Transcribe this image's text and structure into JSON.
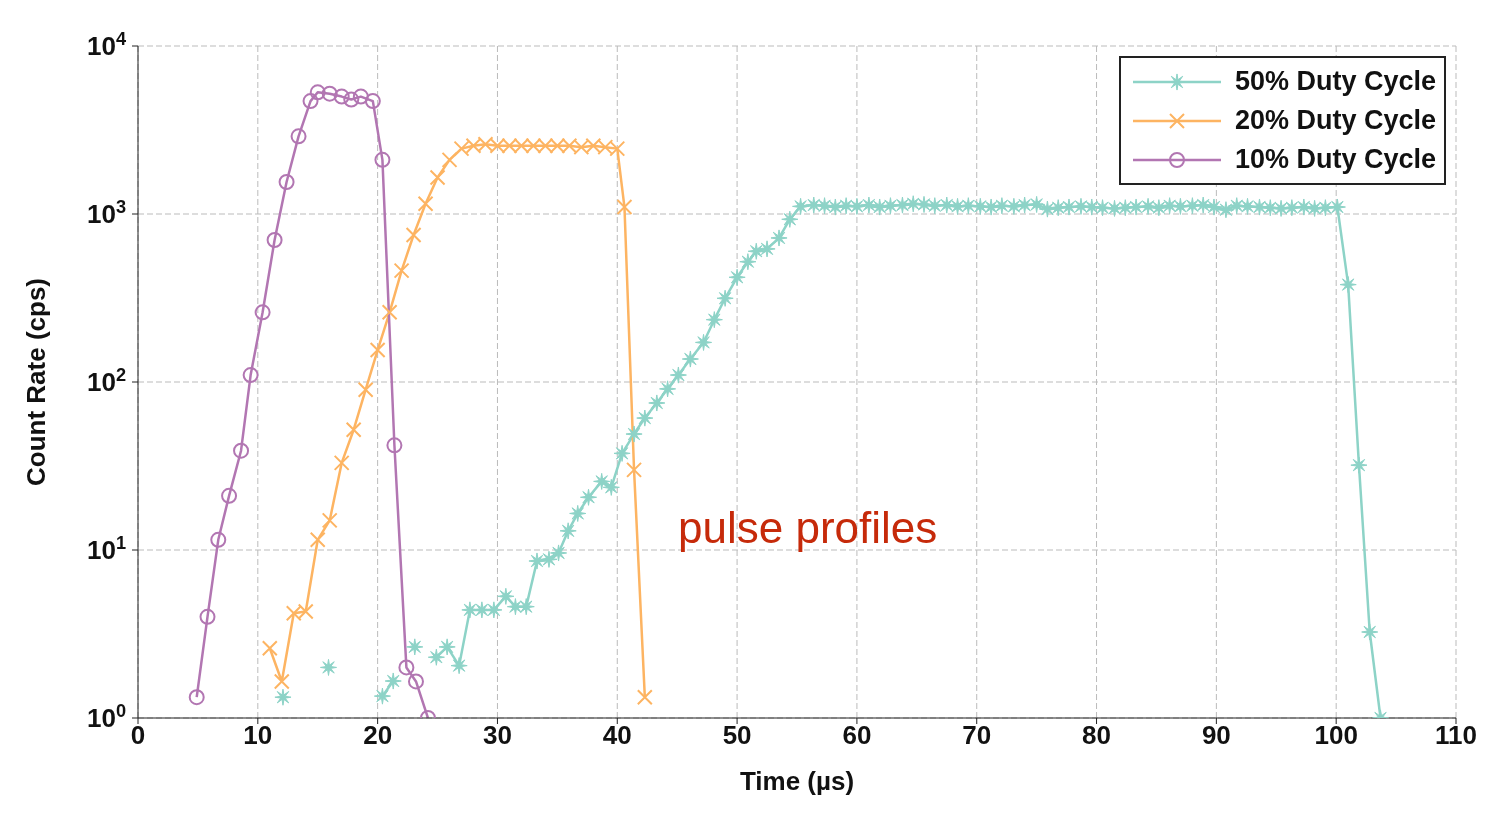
{
  "chart_data": {
    "type": "line",
    "xlabel": "Time (µs)",
    "ylabel": "Count Rate (cps)",
    "annotations": [
      "pulse profiles"
    ],
    "xlim": [
      0,
      110
    ],
    "xticks": [
      0,
      10,
      20,
      30,
      40,
      50,
      60,
      70,
      80,
      90,
      100,
      110
    ],
    "ylim": [
      1,
      10000
    ],
    "yticks": [
      {
        "value": 1,
        "label": "10$^{0}$"
      },
      {
        "value": 10,
        "label": "10$^{1}$"
      },
      {
        "value": 100,
        "label": "10$^{2}$"
      },
      {
        "value": 1000,
        "label": "10$^{3}$"
      },
      {
        "value": 10000,
        "label": "10$^{4}$"
      }
    ],
    "log": true,
    "grid": true,
    "legend": "top right",
    "line_style": "solid",
    "series": [
      {
        "name": "50% Duty Cycle",
        "color": "#8dd3c7",
        "marker": "star",
        "x": [
          12.1,
          13.1,
          14.0,
          15.0,
          15.9,
          16.9,
          17.9,
          18.9,
          19.6,
          20.4,
          21.3,
          22.2,
          23.1,
          24.0,
          24.9,
          25.8,
          26.8,
          27.7,
          28.7,
          29.7,
          30.7,
          31.5,
          32.4,
          33.3,
          34.3,
          35.1,
          35.9,
          36.7,
          37.6,
          38.7,
          39.5,
          40.4,
          41.4,
          42.3,
          43.3,
          44.2,
          45.1,
          46.1,
          47.2,
          48.1,
          49.0,
          50.0,
          50.9,
          51.6,
          52.5,
          53.5,
          54.4,
          55.3,
          56.4,
          57.3,
          58.2,
          59.1,
          60.0,
          61.0,
          61.9,
          62.8,
          63.8,
          64.7,
          65.6,
          66.5,
          67.5,
          68.4,
          69.3,
          70.3,
          71.2,
          72.1,
          73.1,
          74.0,
          75.0,
          75.9,
          76.8,
          77.7,
          78.7,
          79.6,
          80.5,
          81.5,
          82.4,
          83.3,
          84.3,
          85.2,
          86.1,
          87.0,
          88.0,
          88.9,
          89.8,
          90.8,
          91.7,
          92.6,
          93.6,
          94.5,
          95.4,
          96.3,
          97.3,
          98.2,
          99.1,
          100.1,
          101.0,
          101.9,
          102.8,
          103.7
        ],
        "values": [
          1.33,
          null,
          null,
          null,
          2.0,
          null,
          null,
          null,
          null,
          1.35,
          1.66,
          null,
          2.65,
          null,
          2.3,
          2.65,
          2.05,
          4.4,
          4.4,
          4.4,
          5.3,
          4.6,
          4.6,
          8.6,
          8.8,
          9.6,
          13,
          16.5,
          20.6,
          25.6,
          23.6,
          37.6,
          49,
          61,
          75,
          91,
          110,
          137,
          172,
          235,
          315,
          420,
          520,
          600,
          620,
          720,
          930,
          1110,
          1130,
          1120,
          1100,
          1120,
          1110,
          1130,
          1100,
          1120,
          1130,
          1150,
          1140,
          1120,
          1130,
          1110,
          1120,
          1110,
          1100,
          1120,
          1110,
          1130,
          1140,
          1070,
          1090,
          1100,
          1110,
          1100,
          1090,
          1080,
          1090,
          1100,
          1110,
          1090,
          1120,
          1110,
          1120,
          1130,
          1100,
          1060,
          1120,
          1110,
          1100,
          1090,
          1080,
          1090,
          1100,
          1080,
          1090,
          1100,
          380,
          32,
          3.25,
          1.0
        ]
      },
      {
        "name": "20% Duty Cycle",
        "color": "#fdb462",
        "marker": "cross",
        "x": [
          11.0,
          12.0,
          13.0,
          14.0,
          15.0,
          16.0,
          17.0,
          18.0,
          19.0,
          20.0,
          21.0,
          22.0,
          23.0,
          24.0,
          25.0,
          26.0,
          27.0,
          28.0,
          29.0,
          30.0,
          31.0,
          32.0,
          33.0,
          34.0,
          35.0,
          36.0,
          37.0,
          38.0,
          39.0,
          40.0,
          40.6,
          41.4,
          42.3
        ],
        "values": [
          2.6,
          1.65,
          4.2,
          4.3,
          11.5,
          15,
          33,
          52,
          90,
          155,
          260,
          460,
          750,
          1150,
          1650,
          2100,
          2450,
          2550,
          2600,
          2550,
          2550,
          2550,
          2550,
          2550,
          2550,
          2550,
          2500,
          2550,
          2500,
          2450,
          1100,
          30,
          1.33
        ]
      },
      {
        "name": "10% Duty Cycle",
        "color": "#b276b2",
        "marker": "circle",
        "x": [
          4.9,
          5.8,
          6.7,
          7.6,
          8.6,
          9.4,
          10.4,
          11.4,
          12.4,
          13.4,
          14.4,
          15.0,
          16.0,
          17.0,
          17.8,
          18.6,
          19.6,
          20.4,
          21.4,
          22.4,
          23.2,
          24.2
        ],
        "values": [
          1.33,
          4,
          11.5,
          21,
          39,
          110,
          260,
          700,
          1550,
          2900,
          4700,
          5300,
          5200,
          5000,
          4800,
          5000,
          4700,
          2100,
          42,
          2,
          1.65,
          1
        ]
      }
    ]
  }
}
